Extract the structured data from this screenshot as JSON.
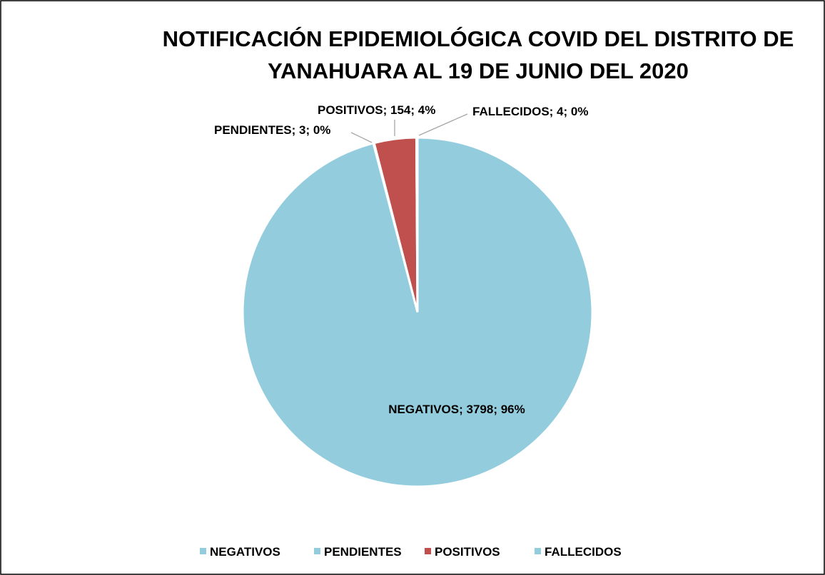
{
  "chart_data": {
    "type": "pie",
    "title": "NOTIFICACIÓN EPIDEMIOLÓGICA COVID  DEL DISTRITO DE YANAHUARA AL 19 DE JUNIO DEL 2020",
    "categories": [
      "NEGATIVOS",
      "PENDIENTES",
      "POSITIVOS",
      "FALLECIDOS"
    ],
    "values": [
      3798,
      3,
      154,
      4
    ],
    "value_labels": [
      "NEGATIVOS; 3798; 96%",
      "PENDIENTES; 3; 0%",
      "POSITIVOS; 154; 4%",
      "FALLECIDOS; 4; 0%"
    ],
    "colors": [
      "#93cddd",
      "#93cddd",
      "#c0504d",
      "#93cddd"
    ],
    "legend": "bottom"
  }
}
